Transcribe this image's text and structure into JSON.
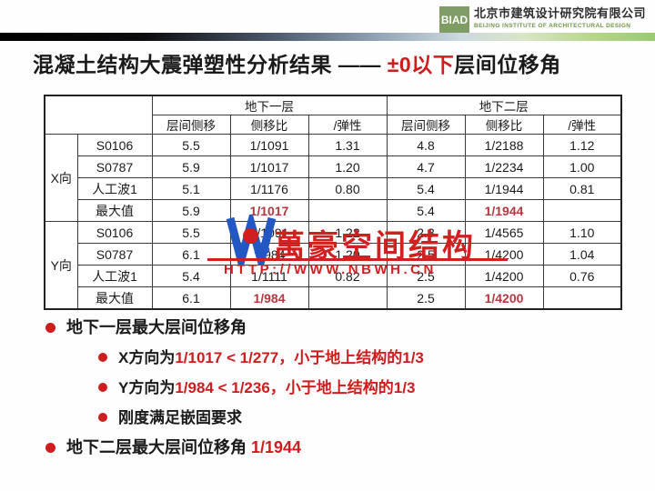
{
  "header": {
    "logo_text": "BIAD",
    "company_cn": "北京市建筑设计研究院有限公司",
    "company_en": "BEIJING INSTITUTE OF ARCHITECTURAL DESIGN"
  },
  "title": {
    "part1": "混凝土结构大震弹塑性分析结果 —— ",
    "part2_red": "±0以下",
    "part3": "层间位移角"
  },
  "table": {
    "group_headers": [
      "地下一层",
      "地下二层"
    ],
    "sub_headers": [
      "层间侧移",
      "侧移比",
      "/弹性",
      "层间侧移",
      "侧移比",
      "/弹性"
    ],
    "sections": [
      {
        "direction": "X向",
        "rows": [
          {
            "label": "S0106",
            "values": [
              "5.5",
              "1/1091",
              "1.31",
              "4.8",
              "1/2188",
              "1.12"
            ],
            "red": []
          },
          {
            "label": "S0787",
            "values": [
              "5.9",
              "1/1017",
              "1.20",
              "4.7",
              "1/2234",
              "1.00"
            ],
            "red": []
          },
          {
            "label": "人工波1",
            "values": [
              "5.1",
              "1/1176",
              "0.80",
              "5.4",
              "1/1944",
              "0.81"
            ],
            "red": []
          },
          {
            "label": "最大值",
            "values": [
              "5.9",
              "1/1017",
              "",
              "5.4",
              "1/1944",
              ""
            ],
            "red": [
              1,
              4
            ]
          }
        ]
      },
      {
        "direction": "Y向",
        "rows": [
          {
            "label": "S0106",
            "values": [
              "5.5",
              "1/1091",
              "1.22",
              "2.3",
              "1/4565",
              "1.10"
            ],
            "red": []
          },
          {
            "label": "S0787",
            "values": [
              "6.1",
              "1/984",
              "1.20",
              "2.5",
              "1/4200",
              "1.04"
            ],
            "red": []
          },
          {
            "label": "人工波1",
            "values": [
              "5.4",
              "1/1111",
              "0.82",
              "2.5",
              "1/4200",
              "0.76"
            ],
            "red": []
          },
          {
            "label": "最大值",
            "values": [
              "6.1",
              "1/984",
              "",
              "2.5",
              "1/4200",
              ""
            ],
            "red": [
              1,
              4
            ]
          }
        ]
      }
    ]
  },
  "watermark": {
    "logo_letter": "W",
    "logo_subtext": "AO",
    "name": "萬豪空间结构",
    "url": "HTTP://WWW.NBWH.CN"
  },
  "bullets": [
    {
      "level": 1,
      "segments": [
        {
          "text": "地下一层最大层间位移角",
          "color": "black"
        }
      ]
    },
    {
      "level": 2,
      "segments": [
        {
          "text": "X方向为",
          "color": "black"
        },
        {
          "text": "1/1017 < 1/277，小于地上结构的1/3",
          "color": "red"
        }
      ]
    },
    {
      "level": 2,
      "segments": [
        {
          "text": "Y方向为",
          "color": "black"
        },
        {
          "text": "1/984  < 1/236，小于地上结构的1/3",
          "color": "red"
        }
      ]
    },
    {
      "level": 2,
      "segments": [
        {
          "text": "刚度满足嵌固要求",
          "color": "black"
        }
      ]
    },
    {
      "level": 1,
      "segments": [
        {
          "text": "地下二层最大层间位移角 ",
          "color": "black"
        },
        {
          "text": "1/1944",
          "color": "red"
        }
      ]
    }
  ],
  "colors": {
    "accent_red": "#cf1c1c",
    "table_value_red": "#b5383f",
    "biad_green": "#7e9c63",
    "watermark_blue": "#2257c4",
    "watermark_red": "#d22020"
  }
}
